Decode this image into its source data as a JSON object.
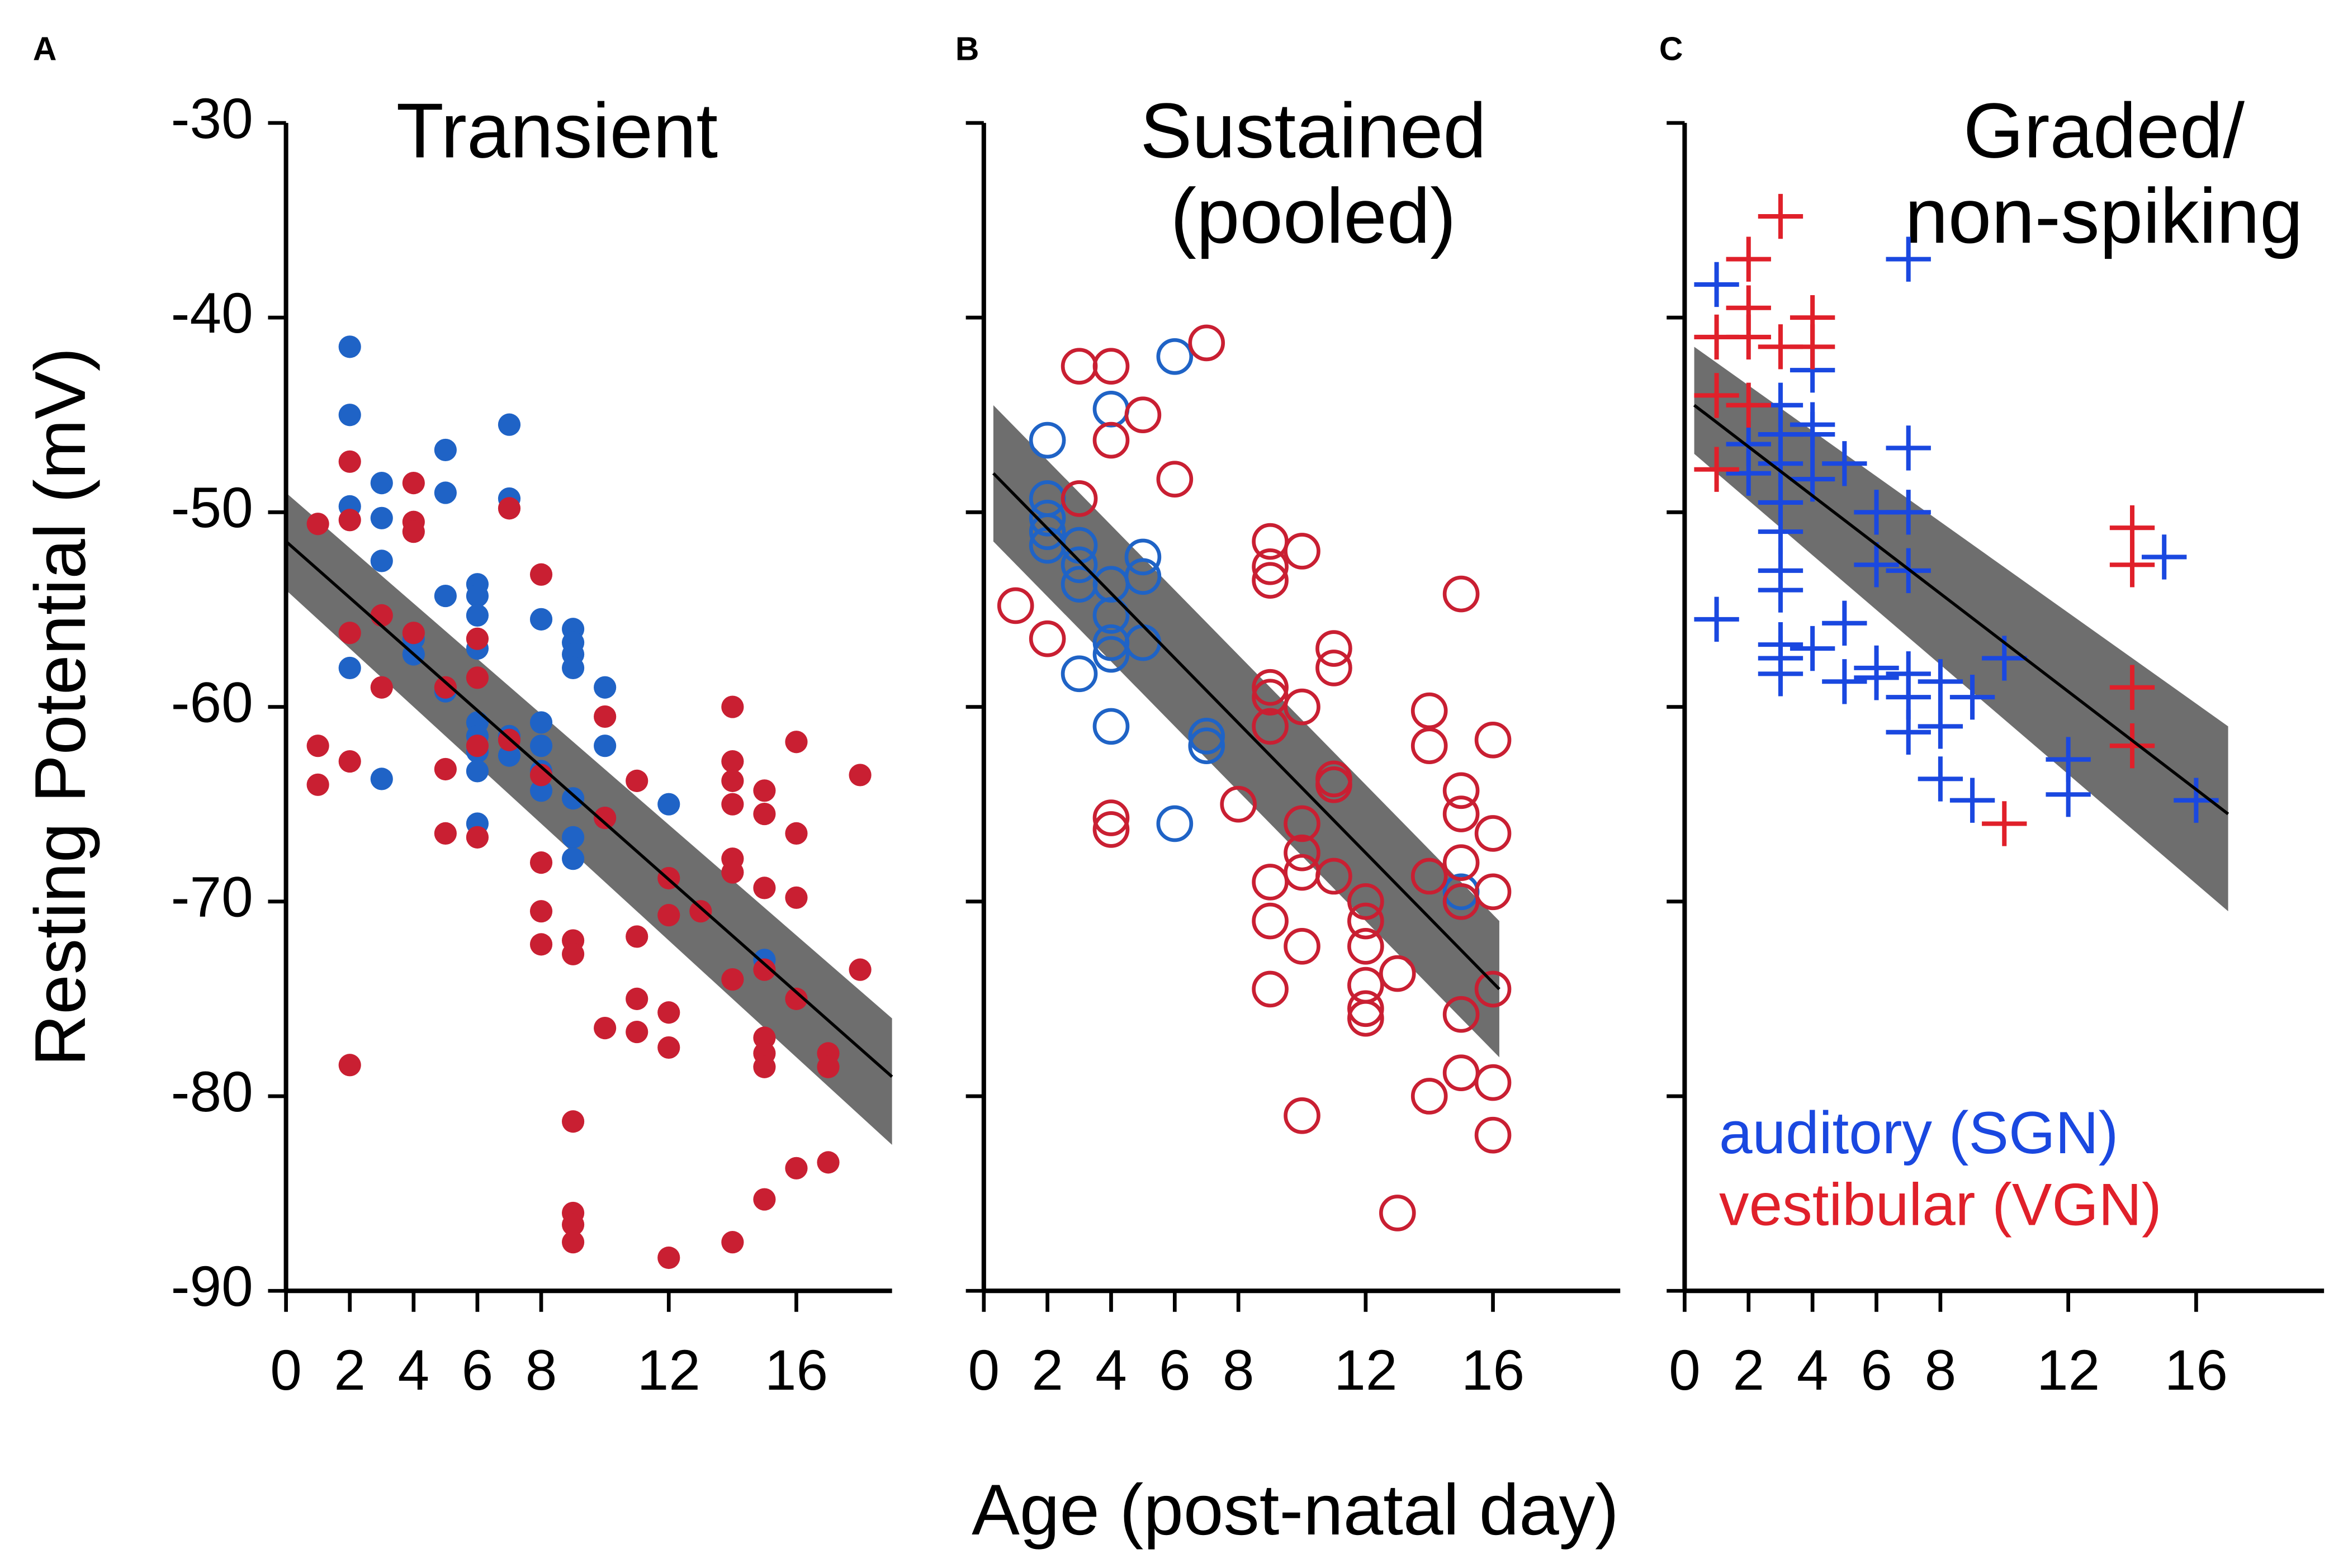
{
  "y_label": "Resting Potential (mV)",
  "x_label": "Age (post-natal day)",
  "chart_data": [
    {
      "type": "scatter",
      "label": "A",
      "title": [
        "Transient"
      ],
      "marker": "filled-circle",
      "xlim": [
        0,
        19
      ],
      "ylim": [
        -90,
        -30
      ],
      "xticks": [
        0,
        2,
        4,
        6,
        8,
        12,
        16
      ],
      "yticks": [
        -30,
        -40,
        -50,
        -60,
        -70,
        -80,
        -90
      ],
      "ytick_labels": true,
      "series": [
        {
          "color": "#1f63c6",
          "x": [
            2,
            2,
            2,
            2,
            3,
            3,
            3,
            3,
            4,
            4,
            5,
            5,
            5,
            5,
            6,
            6,
            6,
            6,
            6,
            6,
            6,
            6,
            6,
            7,
            7,
            7,
            7,
            8,
            8,
            8,
            8,
            8,
            9,
            9,
            9,
            9,
            9,
            9,
            9,
            10,
            10,
            10,
            12,
            15
          ],
          "values": [
            -41.5,
            -45,
            -49.7,
            -58,
            -48.5,
            -50.3,
            -52.5,
            -63.7,
            -56.5,
            -57.3,
            -46.8,
            -49,
            -54.3,
            -59.2,
            -53.7,
            -54.3,
            -55.3,
            -57,
            -60.8,
            -61.5,
            -62.3,
            -63.3,
            -66,
            -45.5,
            -49.3,
            -61.5,
            -62.5,
            -55.5,
            -60.8,
            -62,
            -63.3,
            -64.3,
            -56,
            -56.7,
            -57.3,
            -58,
            -64.7,
            -66.7,
            -67.8,
            -59,
            -62,
            -65.7,
            -65,
            -73
          ]
        },
        {
          "color": "#c91f32",
          "x": [
            1,
            1,
            1,
            2,
            2,
            2,
            2,
            2,
            3,
            3,
            4,
            4,
            4,
            4,
            5,
            5,
            5,
            6,
            6,
            6,
            6,
            7,
            7,
            8,
            8,
            8,
            8,
            8,
            9,
            9,
            9,
            9,
            9,
            9,
            10,
            10,
            10,
            11,
            11,
            11,
            11,
            12,
            12,
            12,
            12,
            12,
            13,
            14,
            14,
            14,
            14,
            14,
            14,
            14,
            14,
            15,
            15,
            15,
            15,
            15,
            15,
            15,
            15,
            16,
            16,
            16,
            16,
            16,
            17,
            17,
            17,
            18,
            18
          ],
          "values": [
            -50.6,
            -62,
            -64,
            -47.4,
            -50.4,
            -56.2,
            -62.8,
            -78.4,
            -55.3,
            -59,
            -48.5,
            -50.5,
            -51,
            -56.2,
            -59,
            -63.2,
            -66.5,
            -56.5,
            -58.5,
            -62,
            -66.7,
            -49.8,
            -61.7,
            -53.2,
            -63.5,
            -68,
            -70.5,
            -72.2,
            -72,
            -72.7,
            -81.3,
            -86,
            -86.6,
            -87.5,
            -60.5,
            -65.7,
            -76.5,
            -63.8,
            -71.8,
            -75,
            -76.7,
            -68.8,
            -70.7,
            -75.7,
            -77.5,
            -88.3,
            -70.5,
            -60,
            -62.8,
            -63.8,
            -65,
            -67.8,
            -68.5,
            -74,
            -87.5,
            -64.3,
            -65.5,
            -69.3,
            -73.5,
            -77,
            -77.8,
            -78.5,
            -85.3,
            -61.8,
            -66.5,
            -69.8,
            -75,
            -83.7,
            -77.8,
            -78.5,
            -83.4,
            -63.5,
            -73.5
          ]
        }
      ],
      "fit": {
        "x": [
          0,
          19
        ],
        "y": [
          -51.5,
          -79
        ]
      },
      "band": {
        "x": [
          0,
          19
        ],
        "upper": [
          -49,
          -76
        ],
        "lower": [
          -54,
          -82.5
        ]
      }
    },
    {
      "type": "scatter",
      "label": "B",
      "title": [
        "Sustained",
        "(pooled)"
      ],
      "marker": "open-circle",
      "xlim": [
        0,
        20
      ],
      "ylim": [
        -90,
        -30
      ],
      "xticks": [
        0,
        2,
        4,
        6,
        8,
        12,
        16
      ],
      "yticks": [
        -30,
        -40,
        -50,
        -60,
        -70,
        -80,
        -90
      ],
      "ytick_labels": false,
      "series": [
        {
          "color": "#1f63c6",
          "x": [
            2,
            2,
            2,
            2,
            2,
            3,
            3,
            3,
            3,
            4,
            4,
            4,
            4,
            4,
            4,
            5,
            5,
            5,
            6,
            6,
            7,
            7,
            15,
            15
          ],
          "values": [
            -46.3,
            -49.3,
            -50.3,
            -51,
            -51.7,
            -51.7,
            -52.7,
            -53.7,
            -58.3,
            -44.7,
            -53.7,
            -55.3,
            -56.7,
            -57.3,
            -61,
            -52.3,
            -53.3,
            -56.7,
            -42,
            -66,
            -61.5,
            -62,
            -69.5,
            -70
          ]
        },
        {
          "color": "#c91f32",
          "x": [
            1,
            2,
            3,
            3,
            4,
            4,
            4,
            4,
            5,
            6,
            7,
            8,
            9,
            9,
            9,
            9,
            9,
            9,
            9,
            9,
            9,
            10,
            10,
            10,
            10,
            10,
            10,
            10,
            11,
            11,
            11,
            11,
            11,
            12,
            12,
            12,
            12,
            12,
            12,
            13,
            13,
            14,
            14,
            14,
            14,
            15,
            15,
            15,
            15,
            15,
            15,
            15,
            16,
            16,
            16,
            16,
            16,
            16
          ],
          "values": [
            -54.8,
            -56.5,
            -42.5,
            -49.3,
            -42.5,
            -46.3,
            -65.7,
            -66.3,
            -45,
            -48.3,
            -41.3,
            -65,
            -51.5,
            -52.8,
            -53.5,
            -59,
            -59.5,
            -61,
            -69,
            -71,
            -74.5,
            -52,
            -60,
            -66,
            -67.5,
            -68.5,
            -72.3,
            -81,
            -57,
            -58,
            -63.7,
            -64,
            -68.7,
            -70,
            -71,
            -72.3,
            -74.3,
            -75.5,
            -76,
            -73.7,
            -86,
            -60.2,
            -62,
            -68.7,
            -80,
            -54.2,
            -64.3,
            -65.5,
            -68,
            -70,
            -75.8,
            -78.8,
            -61.7,
            -66.5,
            -69.5,
            -74.5,
            -79.3,
            -82
          ]
        }
      ],
      "fit": {
        "x": [
          0.3,
          16.2
        ],
        "y": [
          -48,
          -74.5
        ]
      },
      "band": {
        "x": [
          0.3,
          16.2
        ],
        "upper": [
          -44.5,
          -71
        ],
        "lower": [
          -51.5,
          -78
        ]
      }
    },
    {
      "type": "scatter",
      "label": "C",
      "title": [
        "Graded/",
        "non-spiking"
      ],
      "marker": "plus",
      "xlim": [
        0,
        20
      ],
      "ylim": [
        -90,
        -30
      ],
      "xticks": [
        0,
        2,
        4,
        6,
        8,
        12,
        16
      ],
      "yticks": [
        -30,
        -40,
        -50,
        -60,
        -70,
        -80,
        -90
      ],
      "ytick_labels": false,
      "series": [
        {
          "name": "auditory (SGN)",
          "color": "#1a48e0",
          "x": [
            1,
            1,
            2,
            2,
            3,
            3,
            3,
            3,
            3,
            3,
            3,
            3,
            3,
            3,
            4,
            4,
            4,
            4,
            4,
            5,
            5,
            5,
            6,
            6,
            6,
            6,
            7,
            7,
            7,
            7,
            7,
            7,
            7,
            8,
            8,
            8,
            9,
            9,
            10,
            12,
            12,
            15,
            16
          ],
          "values": [
            -38.3,
            -55.5,
            -46.5,
            -48,
            -44.5,
            -46,
            -47.5,
            -49.5,
            -51,
            -53,
            -54,
            -56.8,
            -57.5,
            -58.3,
            -42.7,
            -45.5,
            -46,
            -48.3,
            -57,
            -47.5,
            -55.7,
            -58.7,
            -50,
            -52.7,
            -58,
            -58.5,
            -37,
            -46.7,
            -50,
            -53,
            -58.3,
            -59.5,
            -61.3,
            -58.7,
            -61,
            -63.7,
            -59.5,
            -64.8,
            -57.5,
            -62.7,
            -64.5,
            -52.3,
            -64.8
          ]
        },
        {
          "name": "vestibular (VGN)",
          "color": "#e0202a",
          "x": [
            1,
            1,
            1,
            2,
            2,
            2,
            2,
            3,
            3,
            4,
            4,
            10,
            14,
            14,
            14,
            14
          ],
          "values": [
            -41,
            -44,
            -47.8,
            -37,
            -39.5,
            -41,
            -44.5,
            -34.8,
            -41.5,
            -40,
            -41.5,
            -66,
            -50.8,
            -52.7,
            -59,
            -62
          ]
        }
      ],
      "fit": {
        "x": [
          0.3,
          17
        ],
        "y": [
          -44.5,
          -65.5
        ]
      },
      "band": {
        "x": [
          0.3,
          17
        ],
        "upper": [
          -41.5,
          -61
        ],
        "lower": [
          -47,
          -70.5
        ]
      }
    }
  ]
}
